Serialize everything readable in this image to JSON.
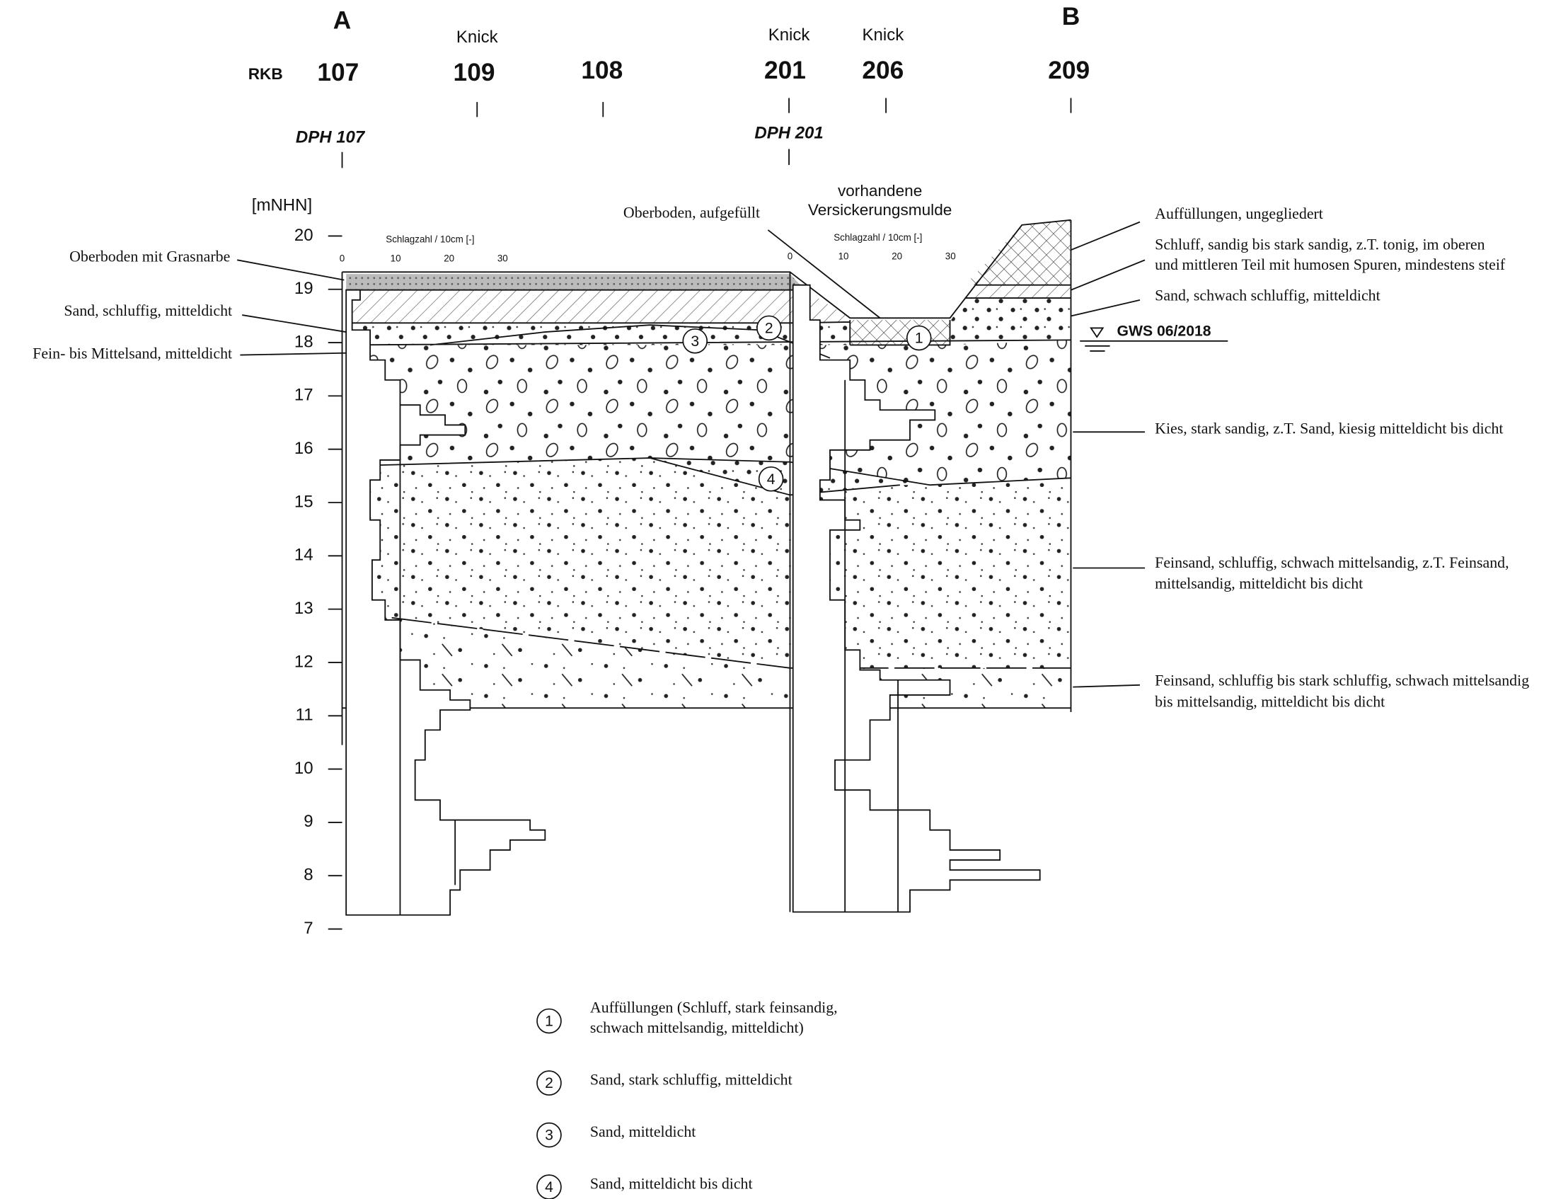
{
  "header": {
    "section_start": "A",
    "section_end": "B",
    "rkb_label": "RKB",
    "boreholes": [
      {
        "id": "107"
      },
      {
        "note": "Knick",
        "id": "109"
      },
      {
        "id": "108"
      },
      {
        "note": "Knick",
        "id": "201"
      },
      {
        "note": "Knick",
        "id": "206"
      },
      {
        "id": "209"
      }
    ],
    "dph": [
      "DPH 107",
      "DPH  201"
    ]
  },
  "axis": {
    "unit": "[mNHN]",
    "ticks": [
      20,
      19,
      18,
      17,
      16,
      15,
      14,
      13,
      12,
      11,
      10,
      9,
      8,
      7
    ]
  },
  "dph_scale": {
    "label": "Schlagzahl / 10cm [-]",
    "ticks": [
      "0",
      "10",
      "20",
      "30"
    ]
  },
  "left_labels": [
    "Oberboden mit Grasnarbe",
    "Sand, schluffig, mitteldicht",
    "Fein- bis Mittelsand, mitteldicht"
  ],
  "center_labels": {
    "topsoil": "Oberboden, aufgefüllt",
    "basin": [
      "vorhandene",
      "Versickerungsmulde"
    ]
  },
  "right_labels": [
    [
      "Auffüllungen, ungegliedert"
    ],
    [
      "Schluff, sandig bis stark sandig, z.T. tonig, im oberen",
      "und mittleren Teil mit humosen Spuren, mindestens steif"
    ],
    [
      "Sand, schwach schluffig, mitteldicht"
    ],
    [
      "Kies, stark sandig, z.T. Sand, kiesig mitteldicht bis dicht"
    ],
    [
      "Feinsand, schluffig, schwach mittelsandig, z.T. Feinsand,",
      "mittelsandig, mitteldicht bis dicht"
    ],
    [
      "Feinsand, schluffig bis stark schluffig, schwach mittelsandig",
      "bis mittelsandig, mitteldicht bis dicht"
    ]
  ],
  "groundwater": "GWS 06/2018",
  "legend": {
    "items": [
      {
        "number": "1",
        "text": [
          "Auffüllungen (Schluff, stark feinsandig,",
          "schwach mittelsandig, mitteldicht)"
        ]
      },
      {
        "number": "2",
        "text": [
          "Sand, stark schluffig, mitteldicht"
        ]
      },
      {
        "number": "3",
        "text": [
          "Sand, mitteldicht"
        ]
      },
      {
        "number": "4",
        "text": [
          "Sand, mitteldicht bis dicht"
        ]
      }
    ]
  }
}
